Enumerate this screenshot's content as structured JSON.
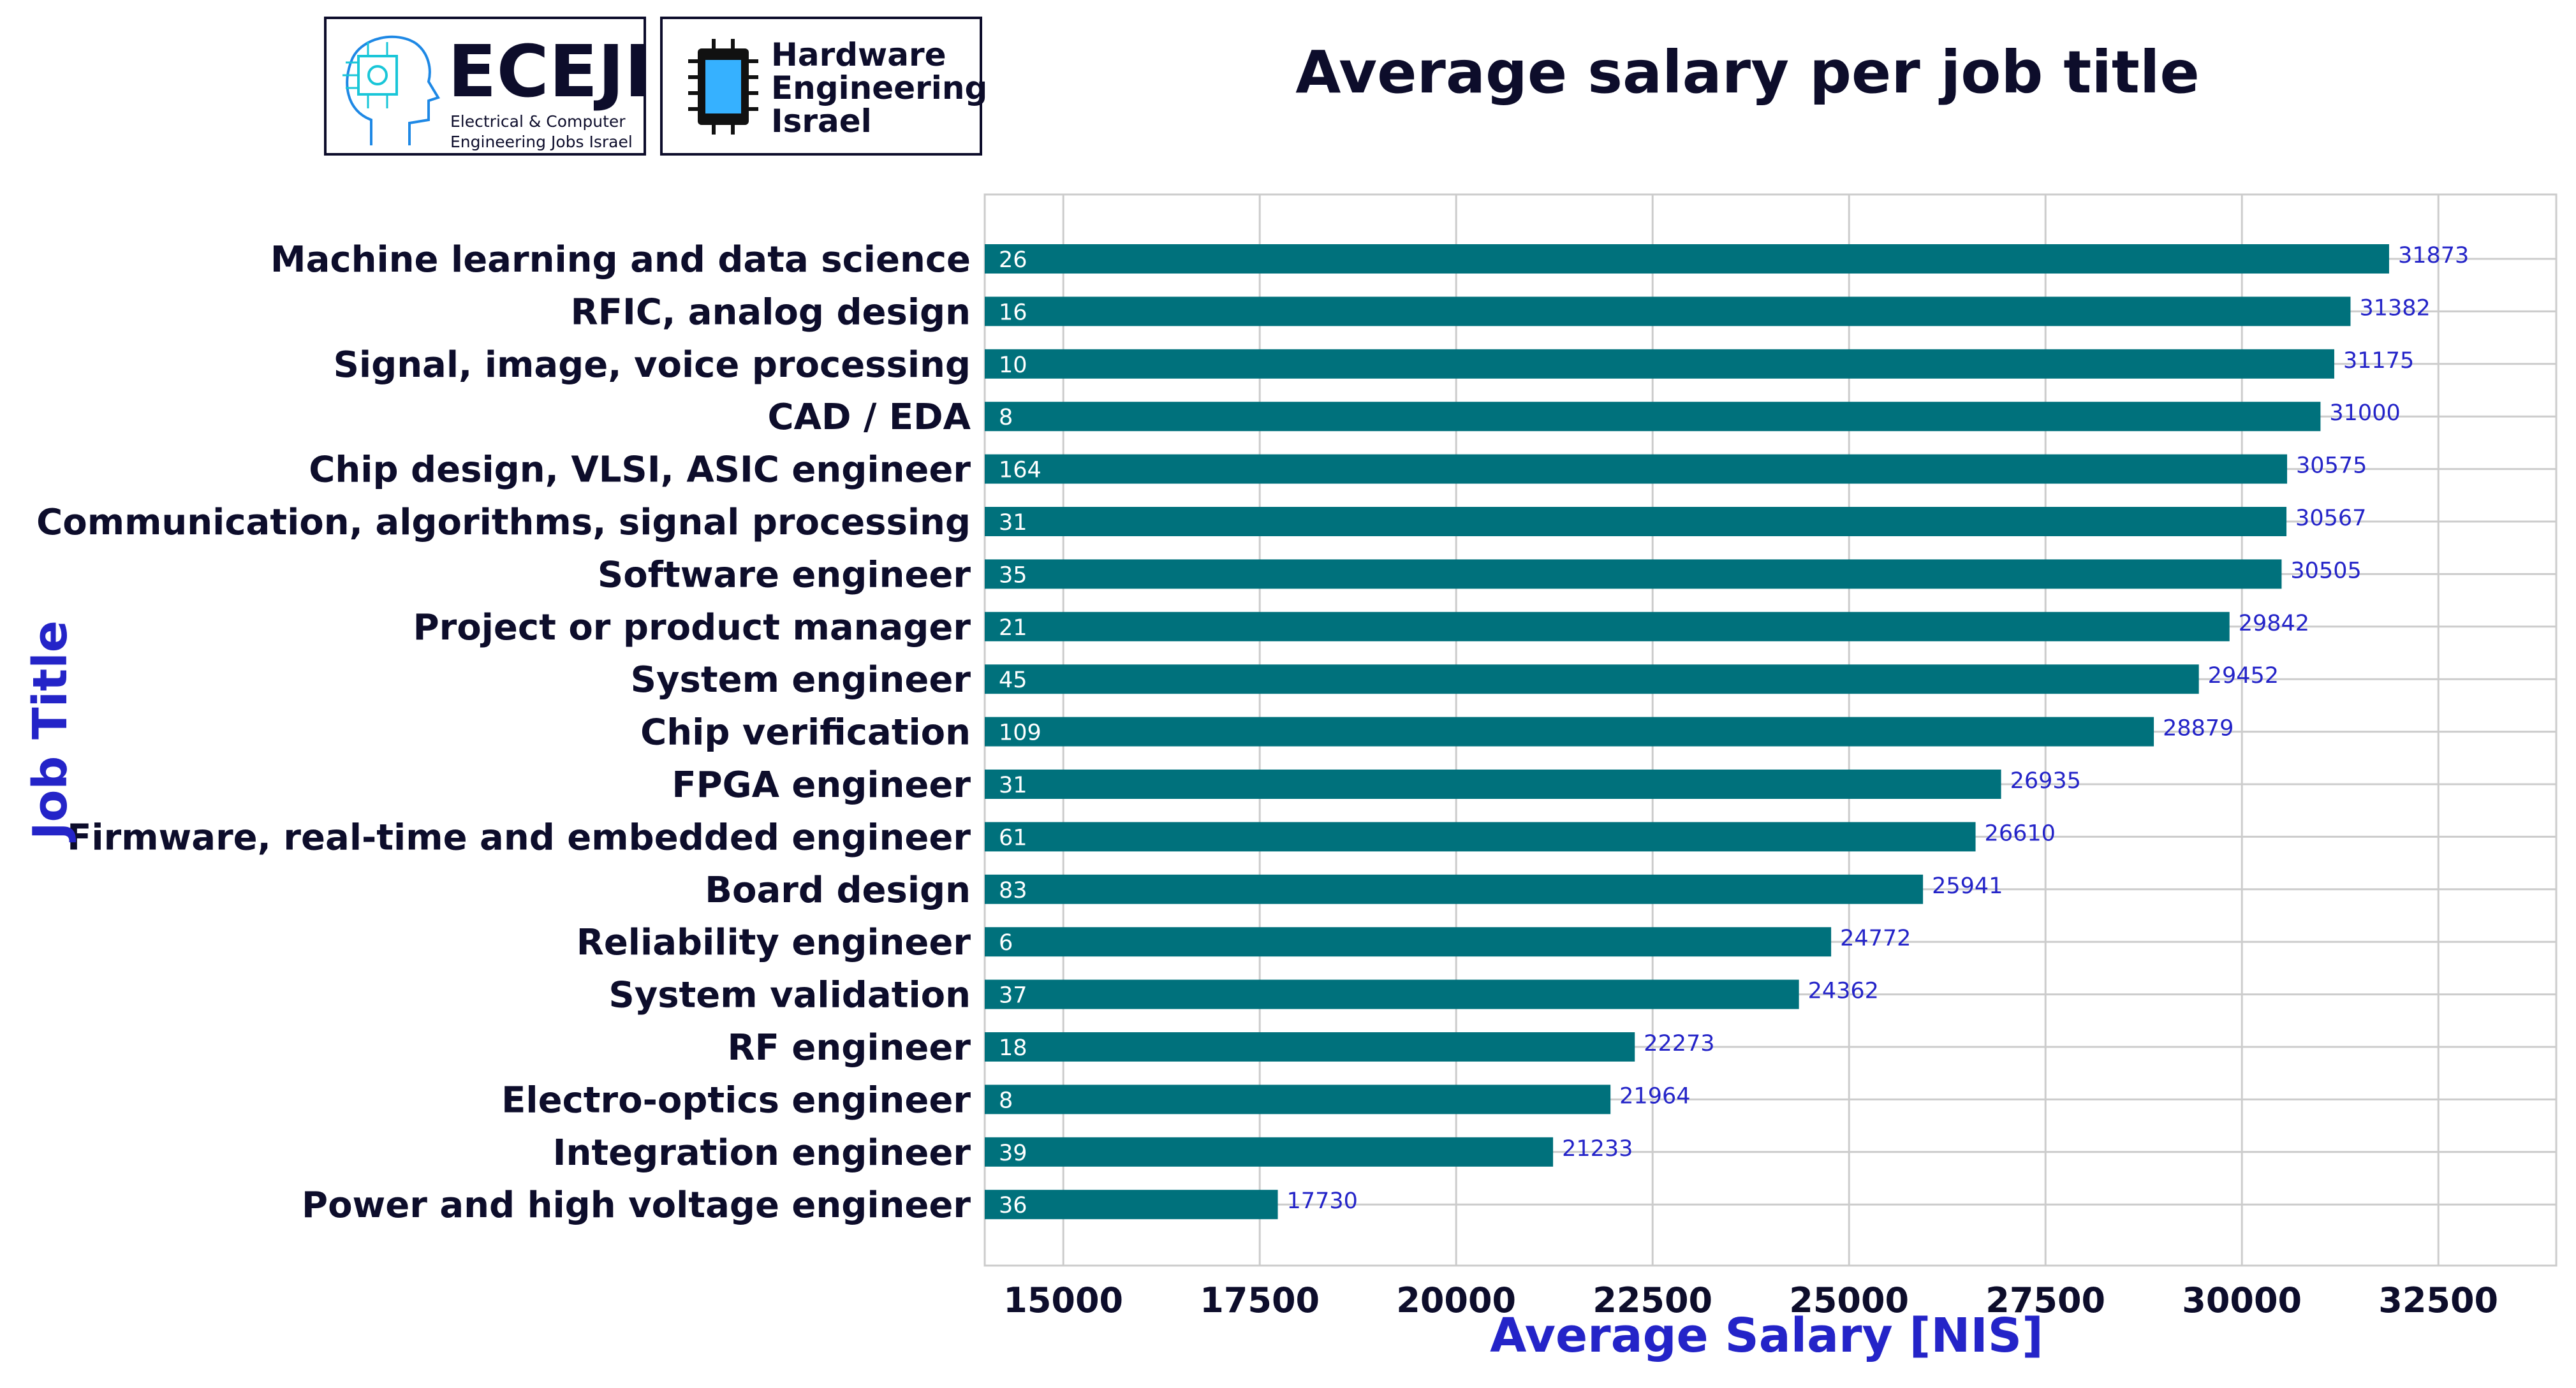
{
  "logos": {
    "eceji": {
      "name": "ECEJI",
      "line1": "Electrical & Computer",
      "line2": "Engineering Jobs Israel"
    },
    "hei": {
      "line1": "Hardware",
      "line2": "Engineering",
      "line3": "Israel"
    }
  },
  "colors": {
    "bar": "#00717c",
    "value_label": "#2424c8",
    "count_label": "#ffffff",
    "axis_title": "#2424c8",
    "dark": "#0d0d2b",
    "grid": "#cccccc"
  },
  "chart_data": {
    "type": "bar",
    "orientation": "horizontal",
    "title": "Average salary per job title",
    "xlabel": "Average Salary [NIS]",
    "ylabel": "Job Title",
    "xlim": [
      14000,
      34000
    ],
    "xticks": [
      15000,
      17500,
      20000,
      22500,
      25000,
      27500,
      30000,
      32500
    ],
    "grid": true,
    "categories": [
      "Machine learning and data science",
      "RFIC, analog design",
      "Signal, image, voice processing",
      "CAD / EDA",
      "Chip design, VLSI, ASIC engineer",
      "Communication, algorithms, signal processing",
      "Software engineer",
      "Project or product manager",
      "System engineer",
      "Chip verification",
      "FPGA engineer",
      "Firmware, real-time and embedded engineer",
      "Board design",
      "Reliability engineer",
      "System validation",
      "RF engineer",
      "Electro-optics engineer",
      "Integration engineer",
      "Power and high voltage engineer"
    ],
    "values": [
      31873,
      31382,
      31175,
      31000,
      30575,
      30567,
      30505,
      29842,
      29452,
      28879,
      26935,
      26610,
      25941,
      24772,
      24362,
      22273,
      21964,
      21233,
      17730
    ],
    "counts": [
      26,
      16,
      10,
      8,
      164,
      31,
      35,
      21,
      45,
      109,
      31,
      61,
      83,
      6,
      37,
      18,
      8,
      39,
      36
    ]
  }
}
